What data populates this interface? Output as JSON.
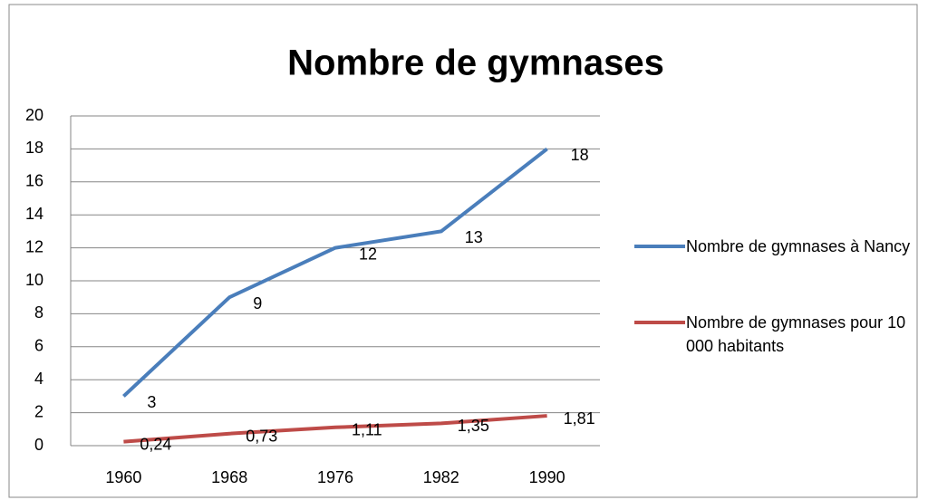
{
  "chart_data": {
    "type": "line",
    "title": "Nombre de gymnases",
    "categories": [
      "1960",
      "1968",
      "1976",
      "1982",
      "1990"
    ],
    "series": [
      {
        "name": "Nombre de gymnases à Nancy",
        "color": "#4a7ebb",
        "values": [
          3,
          9,
          12,
          13,
          18
        ]
      },
      {
        "name": "Nombre de gymnases pour 10 000 habitants",
        "color": "#be4b48",
        "values": [
          0.24,
          0.73,
          1.11,
          1.35,
          1.81
        ],
        "value_labels": [
          "0,24",
          "0,73",
          "1,11",
          "1,35",
          "1,81"
        ]
      }
    ],
    "ylim": [
      0,
      20
    ],
    "yticks": [
      0,
      2,
      4,
      6,
      8,
      10,
      12,
      14,
      16,
      18,
      20
    ],
    "grid": true,
    "legend": "right"
  }
}
